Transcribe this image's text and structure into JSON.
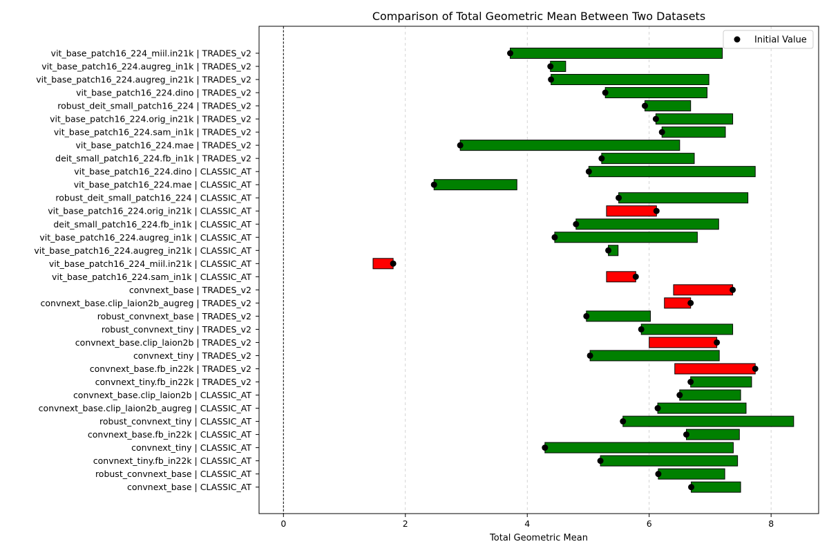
{
  "chart_data": {
    "type": "bar",
    "title": "Comparison of Total Geometric Mean Between Two Datasets",
    "xlabel": "Total Geometric Mean",
    "xlim": [
      -0.4,
      8.78
    ],
    "xticks": [
      0,
      2,
      4,
      6,
      8
    ],
    "grid": "vertical dashed at x ticks",
    "zero_line": "dashed vertical at x=0",
    "legend": {
      "entry": "Initial Value",
      "placement": "top-right"
    },
    "colors": {
      "increase": "#008000",
      "decrease": "#ff0000",
      "marker": "#000000"
    },
    "rows": [
      {
        "label": "vit_base_patch16_224_miil.in21k | TRADES_v2",
        "start": 3.72,
        "end": 7.2
      },
      {
        "label": "vit_base_patch16_224.augreg_in1k | TRADES_v2",
        "start": 4.38,
        "end": 4.63
      },
      {
        "label": "vit_base_patch16_224.augreg_in21k | TRADES_v2",
        "start": 4.39,
        "end": 6.98
      },
      {
        "label": "vit_base_patch16_224.dino | TRADES_v2",
        "start": 5.28,
        "end": 6.95
      },
      {
        "label": "robust_deit_small_patch16_224 | TRADES_v2",
        "start": 5.93,
        "end": 6.68
      },
      {
        "label": "vit_base_patch16_224.orig_in21k | TRADES_v2",
        "start": 6.11,
        "end": 7.37
      },
      {
        "label": "vit_base_patch16_224.sam_in1k | TRADES_v2",
        "start": 6.21,
        "end": 7.25
      },
      {
        "label": "vit_base_patch16_224.mae | TRADES_v2",
        "start": 2.9,
        "end": 6.5
      },
      {
        "label": "deit_small_patch16_224.fb_in1k | TRADES_v2",
        "start": 5.22,
        "end": 6.74
      },
      {
        "label": "vit_base_patch16_224.dino | CLASSIC_AT",
        "start": 5.01,
        "end": 7.74
      },
      {
        "label": "vit_base_patch16_224.mae | CLASSIC_AT",
        "start": 2.47,
        "end": 3.83
      },
      {
        "label": "robust_deit_small_patch16_224 | CLASSIC_AT",
        "start": 5.5,
        "end": 7.62
      },
      {
        "label": "vit_base_patch16_224.orig_in21k | CLASSIC_AT",
        "start": 6.12,
        "end": 5.3
      },
      {
        "label": "deit_small_patch16_224.fb_in1k | CLASSIC_AT",
        "start": 4.8,
        "end": 7.14
      },
      {
        "label": "vit_base_patch16_224.augreg_in1k | CLASSIC_AT",
        "start": 4.45,
        "end": 6.79
      },
      {
        "label": "vit_base_patch16_224.augreg_in21k | CLASSIC_AT",
        "start": 5.33,
        "end": 5.49
      },
      {
        "label": "vit_base_patch16_224_miil.in21k | CLASSIC_AT",
        "start": 1.8,
        "end": 1.47
      },
      {
        "label": "vit_base_patch16_224.sam_in1k | CLASSIC_AT",
        "start": 5.78,
        "end": 5.3
      },
      {
        "label": "convnext_base | TRADES_v2",
        "start": 7.37,
        "end": 6.4
      },
      {
        "label": "convnext_base.clip_laion2b_augreg | TRADES_v2",
        "start": 6.68,
        "end": 6.25
      },
      {
        "label": "robust_convnext_base | TRADES_v2",
        "start": 4.97,
        "end": 6.02
      },
      {
        "label": "robust_convnext_tiny | TRADES_v2",
        "start": 5.87,
        "end": 7.37
      },
      {
        "label": "convnext_base.clip_laion2b | TRADES_v2",
        "start": 7.11,
        "end": 6.0
      },
      {
        "label": "convnext_tiny | TRADES_v2",
        "start": 5.03,
        "end": 7.15
      },
      {
        "label": "convnext_base.fb_in22k | TRADES_v2",
        "start": 7.74,
        "end": 6.42
      },
      {
        "label": "convnext_tiny.fb_in22k | TRADES_v2",
        "start": 6.68,
        "end": 7.68
      },
      {
        "label": "convnext_base.clip_laion2b | CLASSIC_AT",
        "start": 6.5,
        "end": 7.5
      },
      {
        "label": "convnext_base.clip_laion2b_augreg | CLASSIC_AT",
        "start": 6.14,
        "end": 7.59
      },
      {
        "label": "robust_convnext_tiny | CLASSIC_AT",
        "start": 5.57,
        "end": 8.37
      },
      {
        "label": "convnext_base.fb_in22k | CLASSIC_AT",
        "start": 6.61,
        "end": 7.48
      },
      {
        "label": "convnext_tiny | CLASSIC_AT",
        "start": 4.29,
        "end": 7.38
      },
      {
        "label": "convnext_tiny.fb_in22k | CLASSIC_AT",
        "start": 5.2,
        "end": 7.45
      },
      {
        "label": "robust_convnext_base | CLASSIC_AT",
        "start": 6.15,
        "end": 7.24
      },
      {
        "label": "convnext_base | CLASSIC_AT",
        "start": 6.69,
        "end": 7.5
      }
    ]
  }
}
